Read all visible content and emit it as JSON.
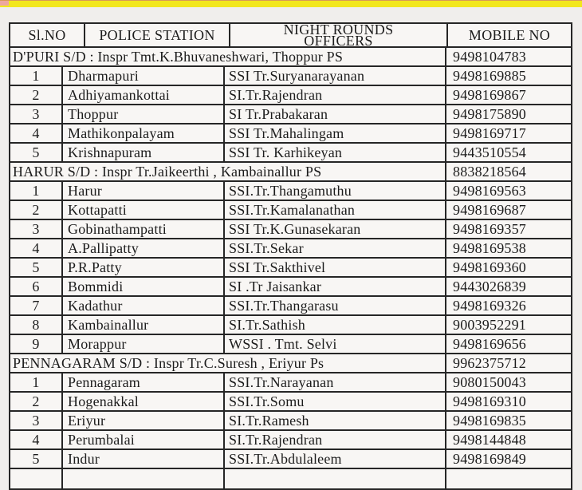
{
  "banner": {
    "color": "#f2e71d",
    "accent_color": "#eda79f"
  },
  "table": {
    "header": {
      "sl_no": "Sl.NO",
      "police_station": "POLICE STATION",
      "officers_line1": "NIGHT ROUNDS",
      "officers_line2": "OFFICERS",
      "mobile_no": "MOBILE NO"
    },
    "sections": [
      {
        "title": "D'PURI S/D : Inspr Tmt.K.Bhuvaneshwari, Thoppur PS",
        "mobile": "9498104783",
        "rows": [
          {
            "sl": "1",
            "station": "Dharmapuri",
            "officer": "SSI Tr.Suryanarayanan",
            "mobile": "9498169885"
          },
          {
            "sl": "2",
            "station": "Adhiyamankottai",
            "officer": "SI.Tr.Rajendran",
            "mobile": "9498169867"
          },
          {
            "sl": "3",
            "station": "Thoppur",
            "officer": "SI Tr.Prabakaran",
            "mobile": "9498175890"
          },
          {
            "sl": "4",
            "station": "Mathikonpalayam",
            "officer": "SSI Tr.Mahalingam",
            "mobile": "9498169717"
          },
          {
            "sl": "5",
            "station": "Krishnapuram",
            "officer": "SSI Tr. Karhikeyan",
            "mobile": "9443510554"
          }
        ]
      },
      {
        "title": "HARUR S/D :  Inspr Tr.Jaikeerthi , Kambainallur PS",
        "mobile": "8838218564",
        "rows": [
          {
            "sl": "1",
            "station": "Harur",
            "officer": "SSI.Tr.Thangamuthu",
            "mobile": "9498169563"
          },
          {
            "sl": "2",
            "station": "Kottapatti",
            "officer": "SSI.Tr.Kamalanathan",
            "mobile": "9498169687"
          },
          {
            "sl": "3",
            "station": "Gobinathampatti",
            "officer": "SSI Tr.K.Gunasekaran",
            "mobile": "9498169357"
          },
          {
            "sl": "4",
            "station": "A.Pallipatty",
            "officer": "SSI.Tr.Sekar",
            "mobile": "9498169538"
          },
          {
            "sl": "5",
            "station": "P.R.Patty",
            "officer": "SSI Tr.Sakthivel",
            "mobile": "9498169360"
          },
          {
            "sl": "6",
            "station": "Bommidi",
            "officer": "SI .Tr Jaisankar",
            "mobile": "9443026839"
          },
          {
            "sl": "7",
            "station": "Kadathur",
            "officer": "SSI.Tr.Thangarasu",
            "mobile": "9498169326"
          },
          {
            "sl": "8",
            "station": "Kambainallur",
            "officer": "SI.Tr.Sathish",
            "mobile": "9003952291"
          },
          {
            "sl": "9",
            "station": "Morappur",
            "officer": "WSSI . Tmt. Selvi",
            "mobile": "9498169656"
          }
        ]
      },
      {
        "title": "PENNAGARAM S/D : Inspr Tr.C.Suresh , Eriyur Ps",
        "mobile": "9962375712",
        "rows": [
          {
            "sl": "1",
            "station": "Pennagaram",
            "officer": "SSI.Tr.Narayanan",
            "mobile": "9080150043"
          },
          {
            "sl": "2",
            "station": "Hogenakkal",
            "officer": "SSI.Tr.Somu",
            "mobile": "9498169310"
          },
          {
            "sl": "3",
            "station": "Eriyur",
            "officer": "SI.Tr.Ramesh",
            "mobile": "9498169835"
          },
          {
            "sl": "4",
            "station": "Perumbalai",
            "officer": "SI.Tr.Rajendran",
            "mobile": "9498144848"
          },
          {
            "sl": "5",
            "station": "Indur",
            "officer": "SSI.Tr.Abdulaleem",
            "mobile": "9498169849"
          }
        ]
      }
    ]
  }
}
